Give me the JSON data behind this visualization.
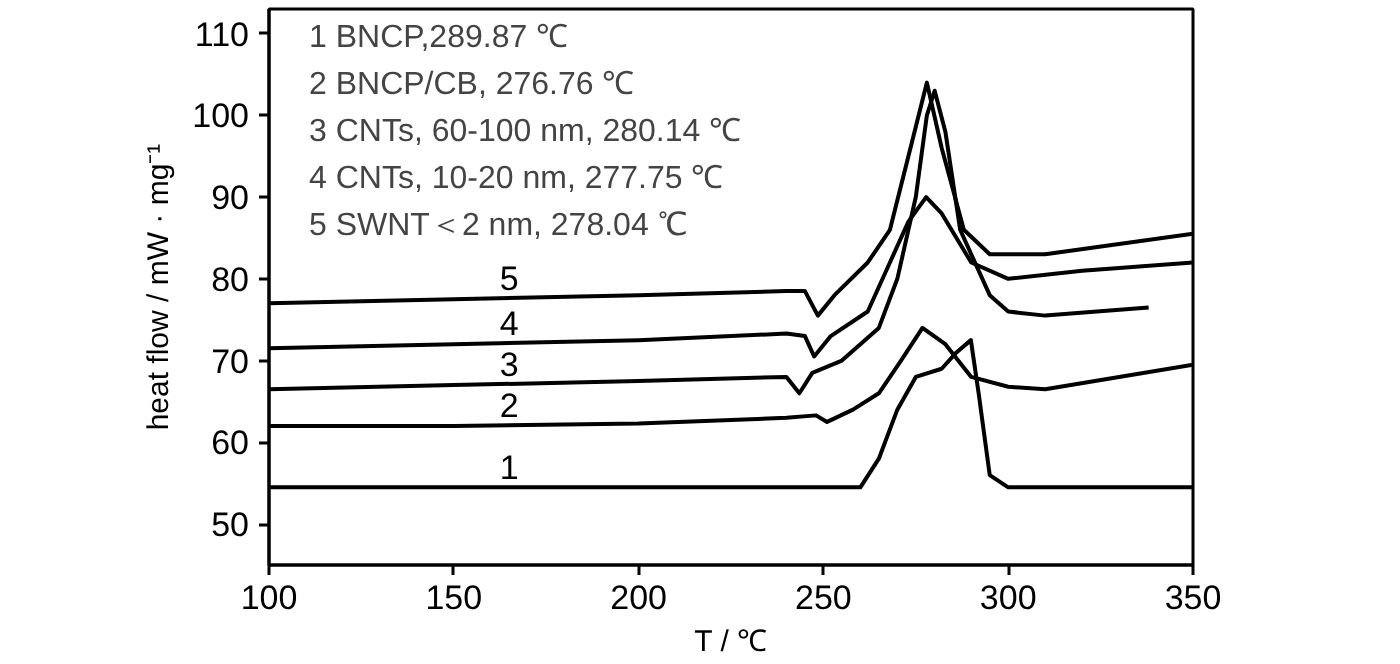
{
  "chart_data": {
    "type": "line",
    "xlabel": "T / ℃",
    "ylabel": "heat flow / mW · mg⁻¹",
    "xlim": [
      100,
      350
    ],
    "ylim": [
      45,
      113
    ],
    "xticks": [
      100,
      150,
      200,
      250,
      300,
      350
    ],
    "yticks": [
      50,
      60,
      70,
      80,
      90,
      100,
      110
    ],
    "grid": false,
    "marker": "none",
    "line_style": "solid",
    "annotations": [
      "1   BNCP,289.87 ℃",
      "2   BNCP/CB,  276.76 ℃",
      "3   CNTs, 60-100 nm, 280.14 ℃",
      "4   CNTs, 10-20 nm, 277.75 ℃",
      "5   SWNT＜2 nm, 278.04 ℃"
    ],
    "series": [
      {
        "name": "1",
        "color": "#000000",
        "x": [
          100,
          150,
          200,
          250,
          260,
          265,
          270,
          275,
          282,
          286,
          289.9,
          292,
          295,
          300,
          320,
          350
        ],
        "values": [
          54.5,
          54.5,
          54.5,
          54.5,
          54.5,
          58,
          64,
          68,
          69,
          71,
          72.5,
          66,
          56,
          54.5,
          54.5,
          54.5
        ]
      },
      {
        "name": "2",
        "color": "#000000",
        "x": [
          100,
          150,
          200,
          240,
          248,
          251,
          258,
          265,
          271,
          276.8,
          283,
          290,
          300,
          310,
          330,
          350
        ],
        "values": [
          62,
          62,
          62.3,
          63,
          63.3,
          62.5,
          64,
          66,
          70,
          74,
          72,
          68,
          66.8,
          66.5,
          68,
          69.5
        ]
      },
      {
        "name": "3",
        "color": "#000000",
        "x": [
          100,
          150,
          200,
          240,
          243.5,
          247,
          255,
          265,
          270,
          275,
          278,
          280.1,
          283,
          287,
          295,
          300,
          310,
          338
        ],
        "values": [
          66.5,
          67,
          67.5,
          68,
          66,
          68.5,
          70,
          74,
          80,
          90,
          100,
          103,
          98,
          86,
          78,
          76,
          75.5,
          76.5
        ]
      },
      {
        "name": "4",
        "color": "#000000",
        "x": [
          100,
          150,
          200,
          240,
          245,
          247.5,
          252,
          262,
          268,
          273,
          277.8,
          282,
          290,
          300,
          320,
          350
        ],
        "values": [
          71.5,
          72,
          72.5,
          73.3,
          73,
          70.5,
          73,
          76,
          82,
          87,
          90,
          88,
          82,
          80,
          81,
          82
        ]
      },
      {
        "name": "5",
        "color": "#000000",
        "x": [
          100,
          150,
          200,
          240,
          245,
          248.5,
          253,
          262,
          268,
          273,
          278,
          282,
          288,
          295,
          310,
          350
        ],
        "values": [
          77,
          77.5,
          78,
          78.5,
          78.5,
          75.5,
          78,
          82,
          86,
          95,
          104,
          96,
          86,
          83,
          83,
          85.5
        ]
      }
    ]
  }
}
